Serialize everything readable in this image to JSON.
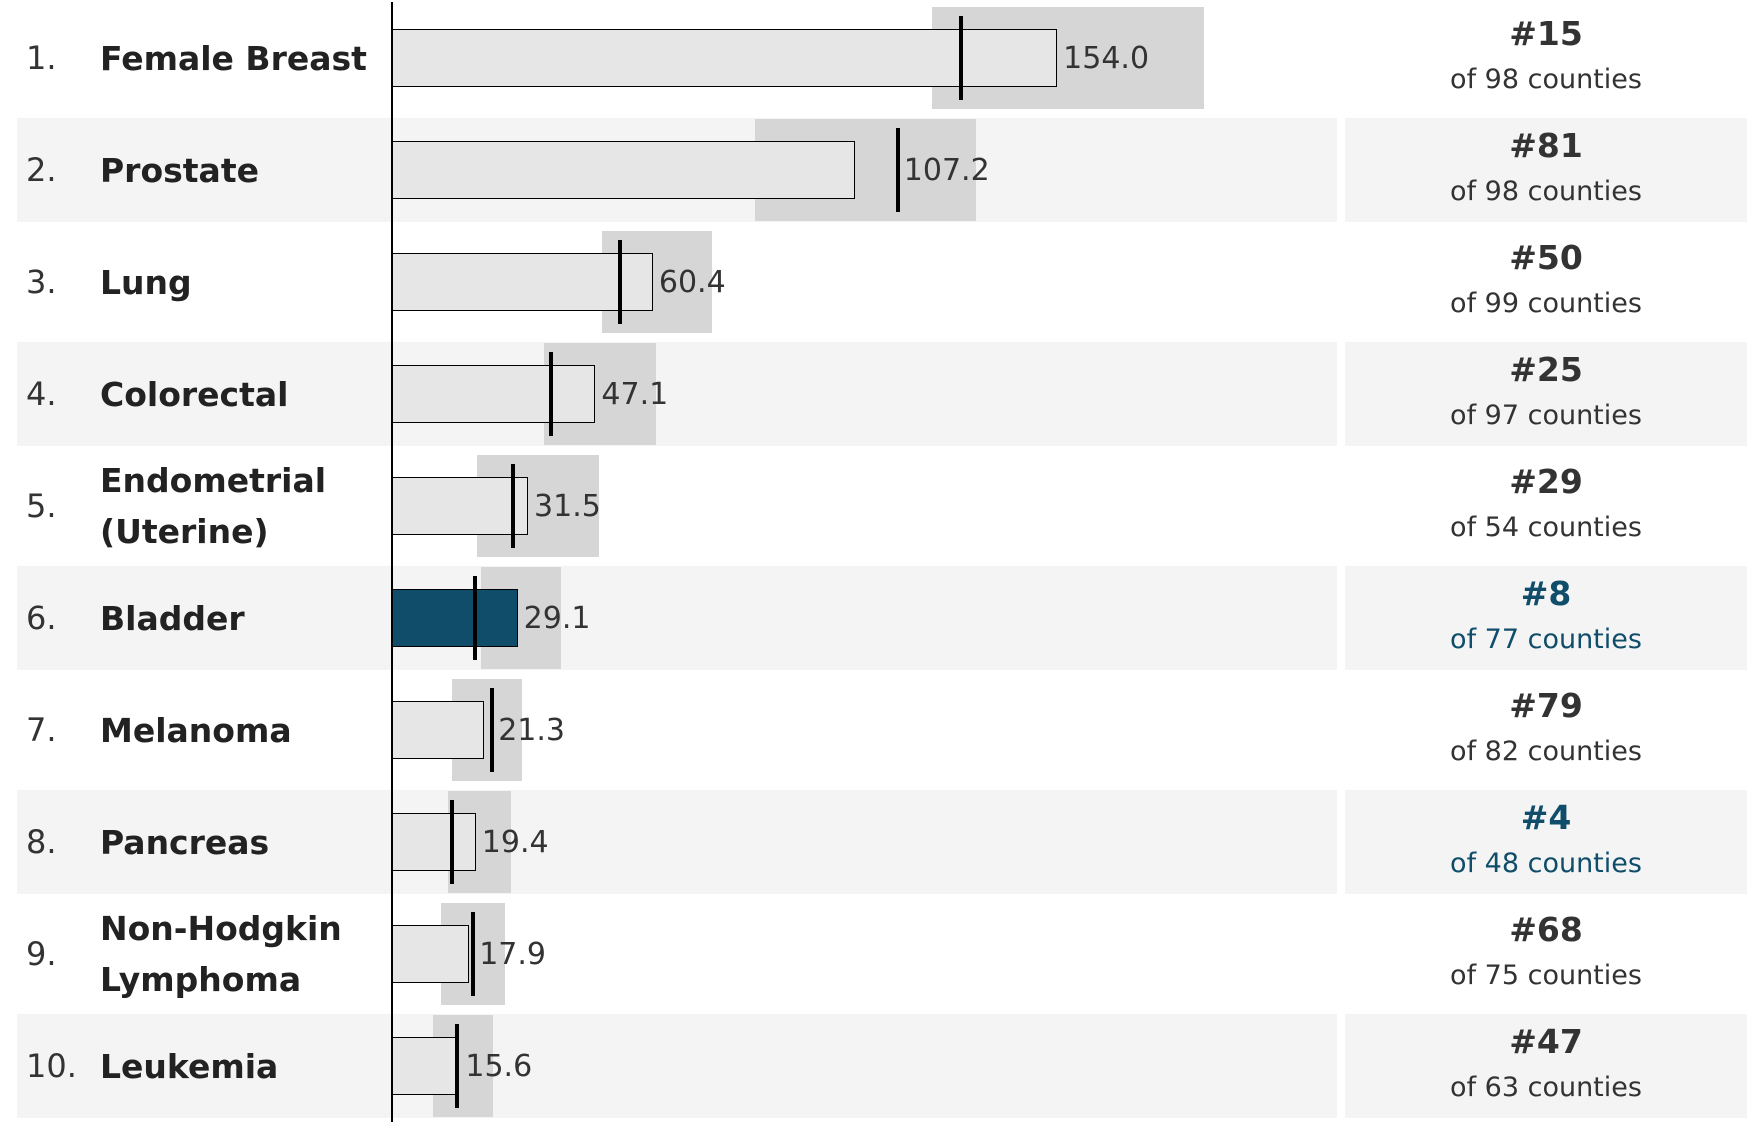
{
  "chart_data": {
    "type": "bullet",
    "bar_color": "#e6e6e6",
    "highlight_color": "#0f4d6b",
    "marker_color": "#000000",
    "range_color": "#d6d6d6",
    "text_color": "#333333",
    "rows": [
      {
        "rank": "1.",
        "name": "Female Breast",
        "value": 154.0,
        "value_label": "154.0",
        "marker": 131.8,
        "range": [
          125.1,
          188.0
        ],
        "county_rank": "#15",
        "county_total": "of 98 counties",
        "bar_highlight": false,
        "rank_highlight": false
      },
      {
        "rank": "2.",
        "name": "Prostate",
        "value": 107.2,
        "marker": 117.1,
        "range": [
          84.1,
          135.2
        ],
        "county_rank": "#81",
        "county_total": "of 98 counties",
        "bar_highlight": false,
        "rank_highlight": false
      },
      {
        "rank": "3.",
        "name": "Lung",
        "value": 60.4,
        "marker": 52.9,
        "range": [
          48.7,
          74.0
        ],
        "county_rank": "#50",
        "county_total": "of 99 counties",
        "bar_highlight": false,
        "rank_highlight": false
      },
      {
        "rank": "4.",
        "name": "Colorectal",
        "value": 47.1,
        "marker": 36.9,
        "range": [
          35.3,
          61.1
        ],
        "county_rank": "#25",
        "county_total": "of 97 counties",
        "bar_highlight": false,
        "rank_highlight": false
      },
      {
        "rank": "5.",
        "name": "Endometrial (Uterine)",
        "value": 31.5,
        "marker": 28.1,
        "range": [
          19.6,
          48.0
        ],
        "county_rank": "#29",
        "county_total": "of 54 counties",
        "bar_highlight": false,
        "rank_highlight": false
      },
      {
        "rank": "6.",
        "name": "Bladder",
        "value": 29.1,
        "marker": 19.3,
        "range": [
          20.6,
          39.2
        ],
        "county_rank": "#8",
        "county_total": "of 77 counties",
        "bar_highlight": true,
        "rank_highlight": true
      },
      {
        "rank": "7.",
        "name": "Melanoma",
        "value": 21.3,
        "marker": 23.2,
        "range": [
          13.9,
          30.2
        ],
        "county_rank": "#79",
        "county_total": "of 82 counties",
        "bar_highlight": false,
        "rank_highlight": false
      },
      {
        "rank": "8.",
        "name": "Pancreas",
        "value": 19.4,
        "marker": 13.9,
        "range": [
          12.9,
          27.6
        ],
        "county_rank": "#4",
        "county_total": "of 48 counties",
        "bar_highlight": false,
        "rank_highlight": true
      },
      {
        "rank": "9.",
        "name": "Non-Hodgkin Lymphoma",
        "value": 17.9,
        "marker": 18.8,
        "range": [
          11.3,
          26.1
        ],
        "county_rank": "#68",
        "county_total": "of 75 counties",
        "bar_highlight": false,
        "rank_highlight": false
      },
      {
        "rank": "10.",
        "name": "Leukemia",
        "value": 15.6,
        "marker": 15.0,
        "range": [
          9.5,
          23.5
        ],
        "county_rank": "#47",
        "county_total": "of 63 counties",
        "bar_highlight": false,
        "rank_highlight": false
      }
    ]
  }
}
